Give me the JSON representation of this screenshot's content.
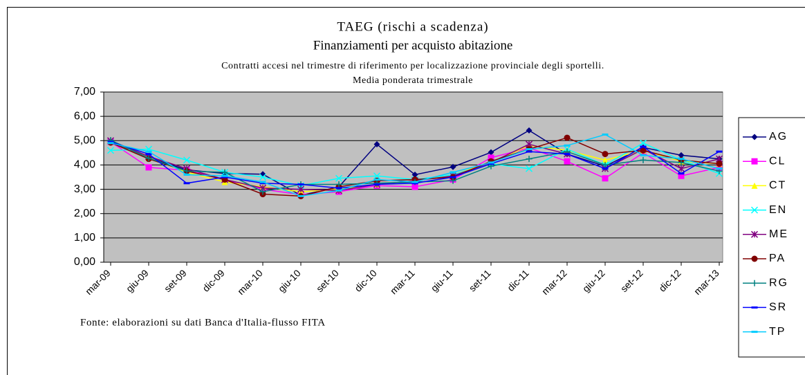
{
  "chart_data": {
    "type": "line",
    "title": "TAEG (rischi a scadenza)",
    "title2": "Finanziamenti per acquisto abitazione",
    "subtitle": "Contratti accesi nel trimestre di riferimento per localizzazione provinciale degli sportelli.",
    "subtitle2": "Media ponderata trimestrale",
    "source": "Fonte: elaborazioni su dati Banca d'Italia-flusso FITA",
    "categories": [
      "mar-09",
      "giu-09",
      "set-09",
      "dic-09",
      "mar-10",
      "giu-10",
      "set-10",
      "dic-10",
      "mar-11",
      "giu-11",
      "set-11",
      "dic-11",
      "mar-12",
      "giu-12",
      "set-12",
      "dic-12",
      "mar-13"
    ],
    "ylim": [
      0,
      7
    ],
    "yticks": [
      {
        "value": 0,
        "label": "0,00"
      },
      {
        "value": 1,
        "label": "1,00"
      },
      {
        "value": 2,
        "label": "2,00"
      },
      {
        "value": 3,
        "label": "3,00"
      },
      {
        "value": 4,
        "label": "4,00"
      },
      {
        "value": 5,
        "label": "5,00"
      },
      {
        "value": 6,
        "label": "6,00"
      },
      {
        "value": 7,
        "label": "7,00"
      }
    ],
    "grid": true,
    "legend": "right",
    "series": [
      {
        "name": "AG",
        "color": "#000080",
        "marker": "diamond",
        "values": [
          4.97,
          4.3,
          3.8,
          3.65,
          3.62,
          2.75,
          3.1,
          4.85,
          3.6,
          3.92,
          4.52,
          5.42,
          4.45,
          3.95,
          4.72,
          4.4,
          4.25
        ]
      },
      {
        "name": "CL",
        "color": "#ff00ff",
        "marker": "square",
        "values": [
          4.95,
          3.9,
          3.78,
          3.4,
          3.0,
          2.78,
          2.9,
          3.15,
          3.1,
          3.4,
          4.3,
          4.7,
          4.15,
          3.45,
          4.5,
          3.55,
          3.9
        ]
      },
      {
        "name": "CT",
        "color": "#ffff00",
        "marker": "triangle",
        "values": [
          5.0,
          4.3,
          3.7,
          3.3,
          3.1,
          2.9,
          3.0,
          3.2,
          3.35,
          3.6,
          4.1,
          4.8,
          4.6,
          4.2,
          4.6,
          4.15,
          4.05
        ]
      },
      {
        "name": "EN",
        "color": "#00ffff",
        "marker": "x",
        "values": [
          4.6,
          4.65,
          4.2,
          3.7,
          3.5,
          3.15,
          3.45,
          3.55,
          3.4,
          3.6,
          4.05,
          3.85,
          4.65,
          4.0,
          4.9,
          4.2,
          3.65
        ]
      },
      {
        "name": "ME",
        "color": "#800080",
        "marker": "star",
        "values": [
          5.0,
          4.35,
          3.85,
          3.4,
          3.05,
          3.0,
          2.95,
          3.2,
          3.35,
          3.55,
          4.1,
          4.85,
          4.45,
          3.85,
          4.65,
          3.85,
          4.25
        ]
      },
      {
        "name": "PA",
        "color": "#800000",
        "marker": "circle",
        "values": [
          4.92,
          4.25,
          3.75,
          3.4,
          2.8,
          2.72,
          3.1,
          3.35,
          3.4,
          3.5,
          4.15,
          4.65,
          5.12,
          4.45,
          4.6,
          4.2,
          4.05
        ]
      },
      {
        "name": "RG",
        "color": "#008080",
        "marker": "plus",
        "values": [
          5.02,
          4.28,
          3.75,
          3.7,
          2.9,
          3.2,
          3.2,
          3.25,
          3.3,
          3.35,
          3.95,
          4.25,
          4.55,
          4.0,
          4.2,
          4.1,
          3.75
        ]
      },
      {
        "name": "SR",
        "color": "#0000ff",
        "marker": "dash",
        "values": [
          4.95,
          4.45,
          3.25,
          3.5,
          3.25,
          3.2,
          3.05,
          3.2,
          3.25,
          3.5,
          4.05,
          4.55,
          4.45,
          3.85,
          4.75,
          3.65,
          4.55
        ]
      },
      {
        "name": "TP",
        "color": "#00ccff",
        "marker": "dash",
        "values": [
          4.9,
          4.55,
          3.6,
          3.55,
          3.3,
          2.72,
          2.95,
          3.4,
          3.3,
          3.7,
          4.1,
          4.65,
          4.8,
          5.25,
          4.4,
          4.25,
          3.85
        ]
      }
    ]
  }
}
